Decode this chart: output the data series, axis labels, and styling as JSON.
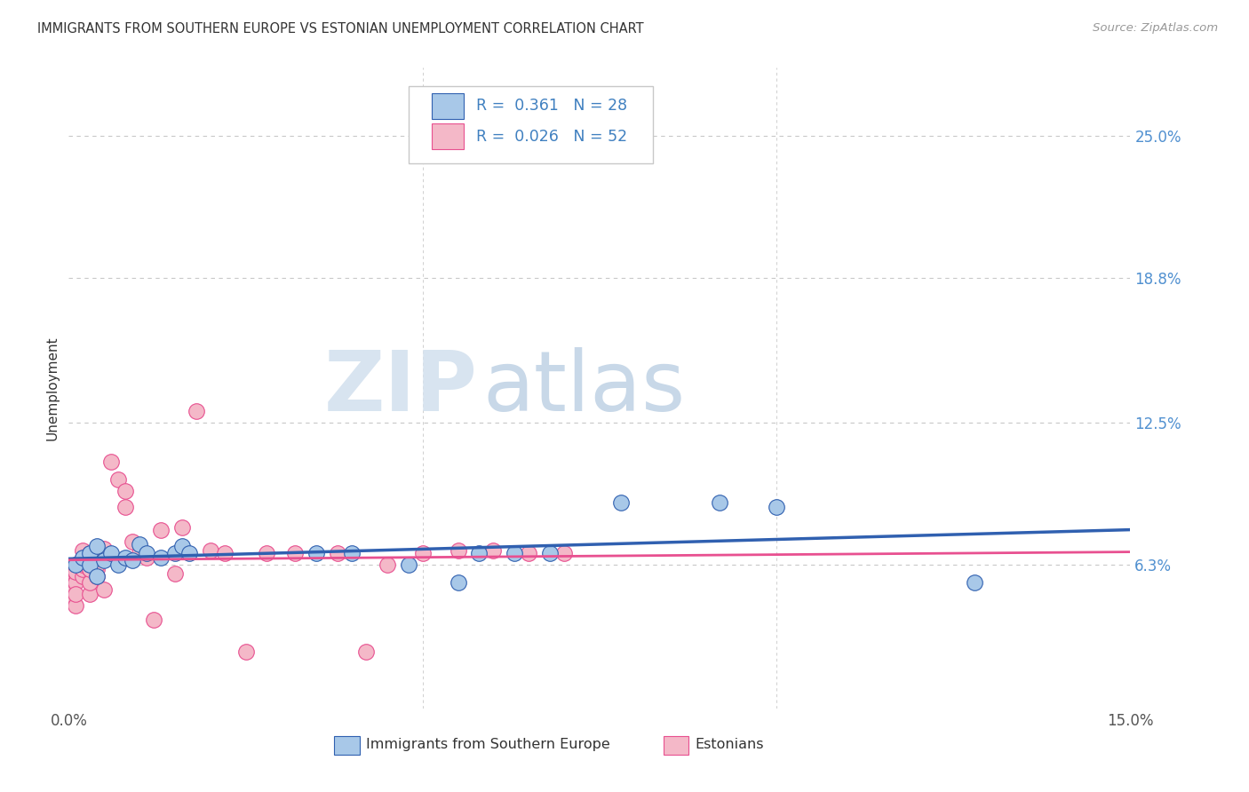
{
  "title": "IMMIGRANTS FROM SOUTHERN EUROPE VS ESTONIAN UNEMPLOYMENT CORRELATION CHART",
  "source": "Source: ZipAtlas.com",
  "ylabel": "Unemployment",
  "xlim": [
    0.0,
    0.15
  ],
  "ylim": [
    0.0,
    0.28
  ],
  "yticks": [
    0.063,
    0.125,
    0.188,
    0.25
  ],
  "ytick_labels": [
    "6.3%",
    "12.5%",
    "18.8%",
    "25.0%"
  ],
  "xtick_labels": [
    "0.0%",
    "15.0%"
  ],
  "grid_color": "#c8c8c8",
  "bg_color": "#ffffff",
  "blue_dot_color": "#a8c8e8",
  "pink_dot_color": "#f4b8c8",
  "blue_line_color": "#3060b0",
  "pink_line_color": "#e85090",
  "blue_text_color": "#4080c0",
  "pink_text_color": "#e85090",
  "tick_label_color": "#5090d0",
  "r_blue": "0.361",
  "n_blue": "28",
  "r_pink": "0.026",
  "n_pink": "52",
  "blue_x": [
    0.001,
    0.002,
    0.003,
    0.003,
    0.004,
    0.004,
    0.005,
    0.006,
    0.007,
    0.008,
    0.009,
    0.01,
    0.011,
    0.013,
    0.015,
    0.016,
    0.017,
    0.035,
    0.04,
    0.048,
    0.055,
    0.058,
    0.063,
    0.068,
    0.078,
    0.092,
    0.1,
    0.128
  ],
  "blue_y": [
    0.063,
    0.066,
    0.068,
    0.063,
    0.071,
    0.058,
    0.065,
    0.068,
    0.063,
    0.066,
    0.065,
    0.072,
    0.068,
    0.066,
    0.068,
    0.071,
    0.068,
    0.068,
    0.068,
    0.063,
    0.055,
    0.068,
    0.068,
    0.068,
    0.09,
    0.09,
    0.088,
    0.055
  ],
  "pink_x": [
    0.0,
    0.0,
    0.001,
    0.001,
    0.001,
    0.001,
    0.001,
    0.001,
    0.001,
    0.002,
    0.002,
    0.002,
    0.002,
    0.002,
    0.003,
    0.003,
    0.003,
    0.003,
    0.003,
    0.003,
    0.004,
    0.004,
    0.004,
    0.004,
    0.005,
    0.005,
    0.005,
    0.006,
    0.007,
    0.008,
    0.008,
    0.009,
    0.01,
    0.011,
    0.012,
    0.013,
    0.015,
    0.016,
    0.018,
    0.02,
    0.022,
    0.025,
    0.028,
    0.032,
    0.038,
    0.042,
    0.045,
    0.05,
    0.055,
    0.06,
    0.065,
    0.07
  ],
  "pink_y": [
    0.06,
    0.05,
    0.058,
    0.06,
    0.055,
    0.045,
    0.063,
    0.05,
    0.06,
    0.066,
    0.069,
    0.058,
    0.061,
    0.063,
    0.061,
    0.063,
    0.05,
    0.055,
    0.061,
    0.068,
    0.058,
    0.061,
    0.063,
    0.068,
    0.052,
    0.069,
    0.07,
    0.108,
    0.1,
    0.095,
    0.088,
    0.073,
    0.068,
    0.066,
    0.039,
    0.078,
    0.059,
    0.079,
    0.13,
    0.069,
    0.068,
    0.025,
    0.068,
    0.068,
    0.068,
    0.025,
    0.063,
    0.068,
    0.069,
    0.069,
    0.068,
    0.068
  ],
  "blue_trend": [
    0.061,
    0.079
  ],
  "pink_trend": [
    0.064,
    0.068
  ],
  "watermark_zip_color": "#d0dce8",
  "watermark_atlas_color": "#c0c8d8"
}
